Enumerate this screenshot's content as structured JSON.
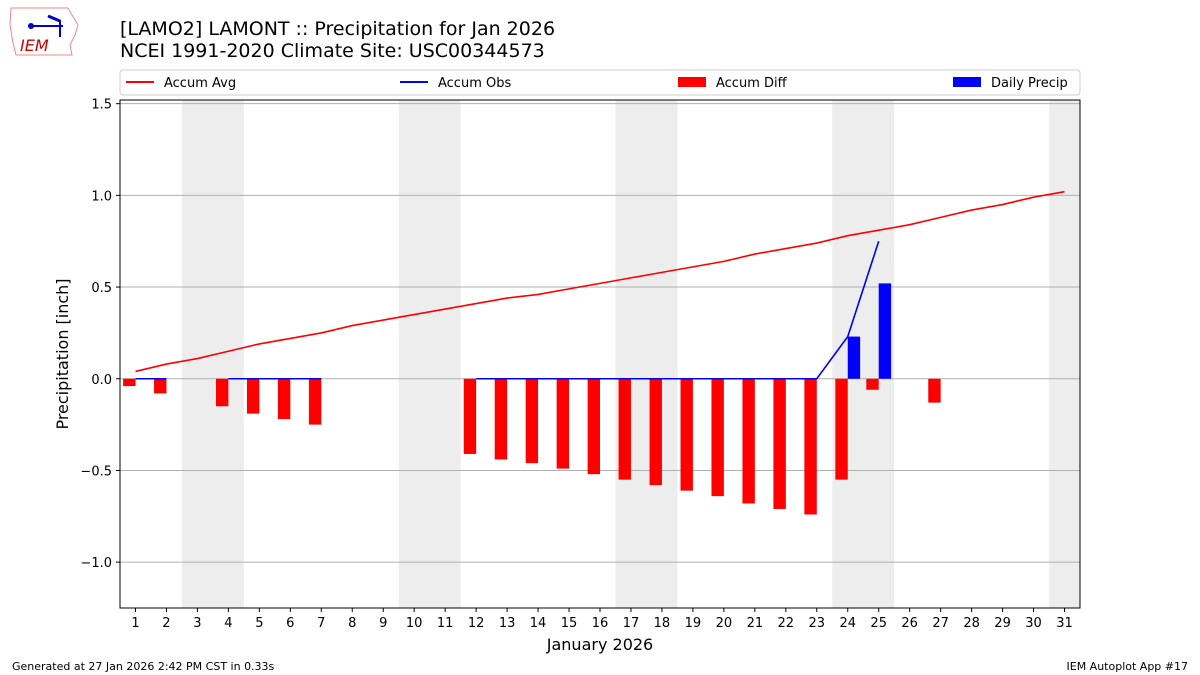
{
  "title_line1": "[LAMO2] LAMONT :: Precipitation for Jan 2026",
  "title_line2": "NCEI 1991-2020 Climate Site: USC00344573",
  "logo_text": "IEM",
  "footer_left": "Generated at 27 Jan 2026 2:42 PM CST in 0.33s",
  "footer_right": "IEM Autoplot App #17",
  "chart_data": {
    "type": "bar",
    "xlabel": "January 2026",
    "ylabel": "Precipitation [inch]",
    "xlim": [
      0.5,
      31.5
    ],
    "ylim": [
      -1.25,
      1.52
    ],
    "yticks": [
      -1.0,
      -0.5,
      0.0,
      0.5,
      1.0,
      1.5
    ],
    "ytick_labels": [
      "−1.0",
      "−0.5",
      "0.0",
      "0.5",
      "1.0",
      "1.5"
    ],
    "x": [
      1,
      2,
      3,
      4,
      5,
      6,
      7,
      8,
      9,
      10,
      11,
      12,
      13,
      14,
      15,
      16,
      17,
      18,
      19,
      20,
      21,
      22,
      23,
      24,
      25,
      26,
      27,
      28,
      29,
      30,
      31
    ],
    "grid": "horizontal",
    "legend_placement": "top",
    "weekend_shading": [
      [
        2.5,
        4.5
      ],
      [
        9.5,
        11.5
      ],
      [
        16.5,
        18.5
      ],
      [
        23.5,
        25.5
      ],
      [
        30.5,
        31.5
      ]
    ],
    "series": [
      {
        "name": "Accum Avg",
        "kind": "line",
        "color": "#ff0000",
        "values": [
          0.04,
          0.08,
          0.11,
          0.15,
          0.19,
          0.22,
          0.25,
          0.29,
          0.32,
          0.35,
          0.38,
          0.41,
          0.44,
          0.46,
          0.49,
          0.52,
          0.55,
          0.58,
          0.61,
          0.64,
          0.68,
          0.71,
          0.74,
          0.78,
          0.81,
          0.84,
          0.88,
          0.92,
          0.95,
          0.99,
          1.02
        ]
      },
      {
        "name": "Accum Obs",
        "kind": "line",
        "color": "#0000ff",
        "values": [
          0,
          0,
          null,
          0,
          0,
          0,
          0,
          null,
          null,
          null,
          null,
          0,
          0,
          0,
          0,
          0,
          0,
          0,
          0,
          0,
          0,
          0,
          0,
          0.23,
          0.75,
          null,
          null,
          null,
          null,
          null,
          null
        ]
      },
      {
        "name": "Accum Diff",
        "kind": "bar",
        "color": "#ff0000",
        "values": [
          -0.04,
          -0.08,
          null,
          -0.15,
          -0.19,
          -0.22,
          -0.25,
          null,
          null,
          null,
          null,
          -0.41,
          -0.44,
          -0.46,
          -0.49,
          -0.52,
          -0.55,
          -0.58,
          -0.61,
          -0.64,
          -0.68,
          -0.71,
          -0.74,
          -0.55,
          -0.06,
          null,
          -0.13,
          null,
          null,
          null,
          null
        ]
      },
      {
        "name": "Daily Precip",
        "kind": "bar",
        "color": "#0000ff",
        "values": [
          0,
          0,
          null,
          0,
          0,
          0,
          0,
          null,
          null,
          null,
          null,
          0,
          0,
          0,
          0,
          0,
          0,
          0,
          0,
          0,
          0,
          0,
          0,
          0.23,
          0.52,
          null,
          null,
          null,
          null,
          null,
          null
        ]
      }
    ]
  }
}
